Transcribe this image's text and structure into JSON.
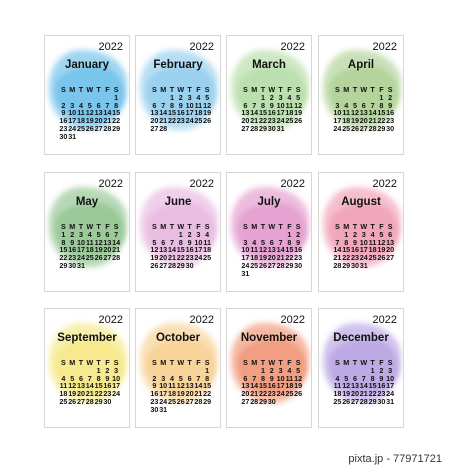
{
  "year": "2022",
  "watermark": "pixta.jp - 77971721",
  "weekdays": [
    "S",
    "M",
    "T",
    "W",
    "T",
    "F",
    "S"
  ],
  "months": [
    {
      "name": "January",
      "color": "#4fb3e6",
      "rows": [
        [
          "",
          "",
          "",
          "",
          "",
          "",
          "1"
        ],
        [
          "2",
          "3",
          "4",
          "5",
          "6",
          "7",
          "8"
        ],
        [
          "9",
          "10",
          "11",
          "12",
          "13",
          "14",
          "15"
        ],
        [
          "16",
          "17",
          "18",
          "19",
          "20",
          "21",
          "22"
        ],
        [
          "23",
          "24",
          "25",
          "26",
          "27",
          "28",
          "29"
        ],
        [
          "30",
          "31",
          "",
          "",
          "",
          "",
          ""
        ]
      ]
    },
    {
      "name": "February",
      "color": "#7cc3ea",
      "rows": [
        [
          "",
          "",
          "1",
          "2",
          "3",
          "4",
          "5"
        ],
        [
          "6",
          "7",
          "8",
          "9",
          "10",
          "11",
          "12"
        ],
        [
          "13",
          "14",
          "15",
          "16",
          "17",
          "18",
          "19"
        ],
        [
          "20",
          "21",
          "22",
          "23",
          "24",
          "25",
          "26"
        ],
        [
          "27",
          "28",
          "",
          "",
          "",
          "",
          ""
        ]
      ]
    },
    {
      "name": "March",
      "color": "#a6d694",
      "rows": [
        [
          "",
          "",
          "1",
          "2",
          "3",
          "4",
          "5"
        ],
        [
          "6",
          "7",
          "8",
          "9",
          "10",
          "11",
          "12"
        ],
        [
          "13",
          "14",
          "15",
          "16",
          "17",
          "18",
          "19"
        ],
        [
          "20",
          "21",
          "22",
          "23",
          "24",
          "25",
          "26"
        ],
        [
          "27",
          "28",
          "29",
          "30",
          "31",
          "",
          ""
        ]
      ]
    },
    {
      "name": "April",
      "color": "#9cc77d",
      "rows": [
        [
          "",
          "",
          "",
          "",
          "",
          "1",
          "2"
        ],
        [
          "3",
          "4",
          "5",
          "6",
          "7",
          "8",
          "9"
        ],
        [
          "10",
          "11",
          "12",
          "13",
          "14",
          "15",
          "16"
        ],
        [
          "17",
          "18",
          "19",
          "20",
          "21",
          "22",
          "23"
        ],
        [
          "24",
          "25",
          "26",
          "27",
          "28",
          "29",
          "30"
        ]
      ]
    },
    {
      "name": "May",
      "color": "#7bb97a",
      "rows": [
        [
          "1",
          "2",
          "3",
          "4",
          "5",
          "6",
          "7"
        ],
        [
          "8",
          "9",
          "10",
          "11",
          "12",
          "13",
          "14"
        ],
        [
          "15",
          "16",
          "17",
          "18",
          "19",
          "20",
          "21"
        ],
        [
          "22",
          "23",
          "24",
          "25",
          "26",
          "27",
          "28"
        ],
        [
          "29",
          "30",
          "31",
          "",
          "",
          "",
          ""
        ]
      ]
    },
    {
      "name": "June",
      "color": "#e3a9d9",
      "rows": [
        [
          "",
          "",
          "",
          "1",
          "2",
          "3",
          "4"
        ],
        [
          "5",
          "6",
          "7",
          "8",
          "9",
          "10",
          "11"
        ],
        [
          "12",
          "13",
          "14",
          "15",
          "16",
          "17",
          "18"
        ],
        [
          "19",
          "20",
          "21",
          "22",
          "23",
          "24",
          "25"
        ],
        [
          "26",
          "27",
          "28",
          "29",
          "30",
          "",
          ""
        ]
      ]
    },
    {
      "name": "July",
      "color": "#de85c4",
      "rows": [
        [
          "",
          "",
          "",
          "",
          "",
          "1",
          "2"
        ],
        [
          "3",
          "4",
          "5",
          "6",
          "7",
          "8",
          "9"
        ],
        [
          "10",
          "11",
          "12",
          "13",
          "14",
          "15",
          "16"
        ],
        [
          "17",
          "18",
          "19",
          "20",
          "21",
          "22",
          "23"
        ],
        [
          "24",
          "25",
          "26",
          "27",
          "28",
          "29",
          "30"
        ],
        [
          "31",
          "",
          "",
          "",
          "",
          "",
          ""
        ]
      ]
    },
    {
      "name": "August",
      "color": "#ee8aa6",
      "rows": [
        [
          "",
          "1",
          "2",
          "3",
          "4",
          "5",
          "6"
        ],
        [
          "7",
          "8",
          "9",
          "10",
          "11",
          "12",
          "13"
        ],
        [
          "14",
          "15",
          "16",
          "17",
          "18",
          "19",
          "20"
        ],
        [
          "21",
          "22",
          "23",
          "24",
          "25",
          "26",
          "27"
        ],
        [
          "28",
          "29",
          "30",
          "31",
          "",
          "",
          ""
        ]
      ]
    },
    {
      "name": "September",
      "color": "#f4e36a",
      "rows": [
        [
          "",
          "",
          "",
          "",
          "1",
          "2",
          "3"
        ],
        [
          "4",
          "5",
          "6",
          "7",
          "8",
          "9",
          "10"
        ],
        [
          "11",
          "12",
          "13",
          "14",
          "15",
          "16",
          "17"
        ],
        [
          "18",
          "19",
          "20",
          "21",
          "22",
          "23",
          "24"
        ],
        [
          "25",
          "26",
          "27",
          "28",
          "29",
          "30",
          ""
        ]
      ]
    },
    {
      "name": "October",
      "color": "#f6c67a",
      "rows": [
        [
          "",
          "",
          "",
          "",
          "",
          "",
          "1"
        ],
        [
          "2",
          "3",
          "4",
          "5",
          "6",
          "7",
          "8"
        ],
        [
          "9",
          "10",
          "11",
          "12",
          "13",
          "14",
          "15"
        ],
        [
          "16",
          "17",
          "18",
          "19",
          "20",
          "21",
          "22"
        ],
        [
          "23",
          "24",
          "25",
          "26",
          "27",
          "28",
          "29"
        ],
        [
          "30",
          "31",
          "",
          "",
          "",
          "",
          ""
        ]
      ]
    },
    {
      "name": "November",
      "color": "#ee7f5a",
      "rows": [
        [
          "",
          "",
          "1",
          "2",
          "3",
          "4",
          "5"
        ],
        [
          "6",
          "7",
          "8",
          "9",
          "10",
          "11",
          "12"
        ],
        [
          "13",
          "14",
          "15",
          "16",
          "17",
          "18",
          "19"
        ],
        [
          "20",
          "21",
          "22",
          "23",
          "24",
          "25",
          "26"
        ],
        [
          "27",
          "28",
          "29",
          "30",
          "",
          "",
          ""
        ]
      ]
    },
    {
      "name": "December",
      "color": "#a98fde",
      "rows": [
        [
          "",
          "",
          "",
          "",
          "1",
          "2",
          "3"
        ],
        [
          "4",
          "5",
          "6",
          "7",
          "8",
          "9",
          "10"
        ],
        [
          "11",
          "12",
          "13",
          "14",
          "15",
          "16",
          "17"
        ],
        [
          "18",
          "19",
          "20",
          "21",
          "22",
          "23",
          "24"
        ],
        [
          "25",
          "26",
          "27",
          "28",
          "29",
          "30",
          "31"
        ]
      ]
    }
  ]
}
